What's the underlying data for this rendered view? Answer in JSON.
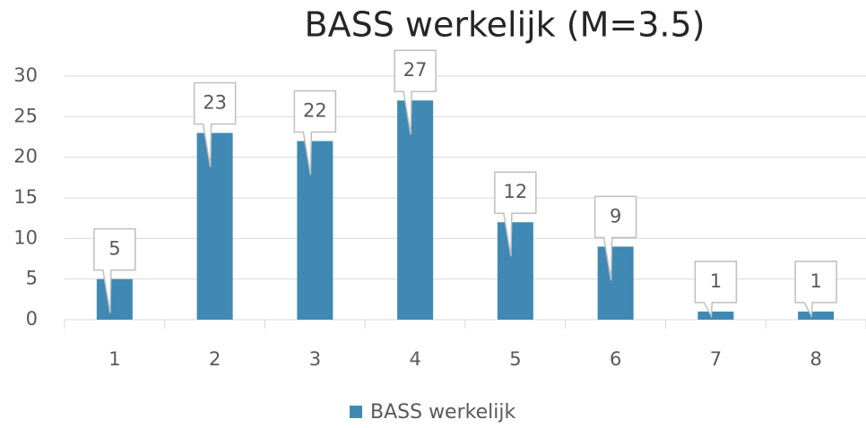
{
  "chart_data": {
    "type": "bar",
    "title": "BASS werkelijk (M=3.5)",
    "categories": [
      "1",
      "2",
      "3",
      "4",
      "5",
      "6",
      "7",
      "8"
    ],
    "series": [
      {
        "name": "BASS werkelijk",
        "color": "#3f89b4",
        "values": [
          5,
          23,
          22,
          27,
          12,
          9,
          1,
          1
        ]
      }
    ],
    "ylim": [
      0,
      30
    ],
    "yticks": [
      0,
      5,
      10,
      15,
      20,
      25,
      30
    ],
    "grid": true,
    "legend": "bottom"
  }
}
